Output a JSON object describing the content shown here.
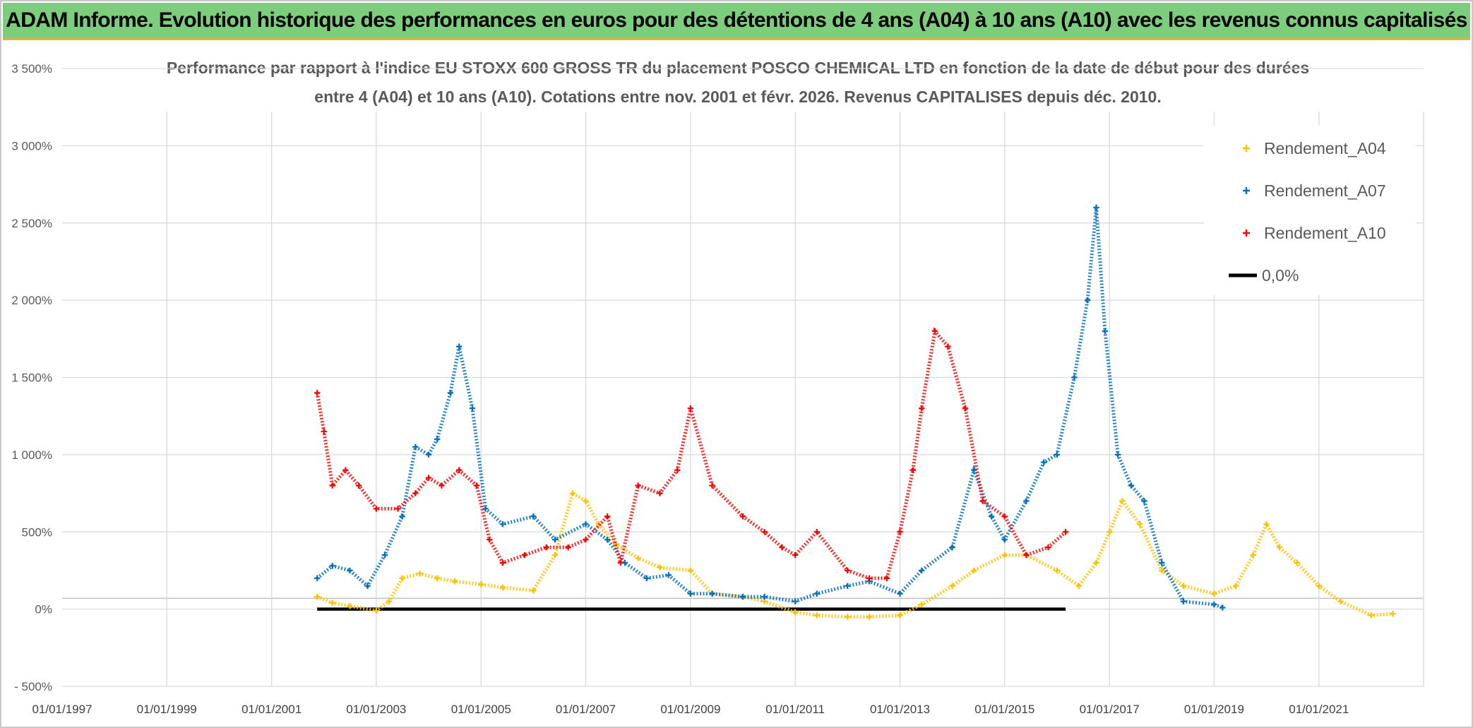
{
  "banner": {
    "title": "ADAM Informe. Evolution historique des performances en euros pour des détentions de 4 ans (A04) à 10 ans (A10) avec les revenus connus capitalisés"
  },
  "colors": {
    "banner_bg": "#7ccd7c",
    "a04": "#ffc000",
    "a07": "#0070c0",
    "a10": "#ff0000",
    "zero": "#000000",
    "grid": "#d9d9d9"
  },
  "chart_data": {
    "type": "scatter",
    "title_line1": "Performance par rapport à l'indice EU STOXX 600 GROSS TR  du placement POSCO CHEMICAL LTD en fonction de la date de début pour des durées",
    "title_line2": "entre 4 (A04) et 10 ans (A10). Cotations entre nov. 2001 et févr. 2026. Revenus CAPITALISES depuis déc. 2010.",
    "y_ticks": [
      "3 500%",
      "3 000%",
      "2 500%",
      "2 000%",
      "1 500%",
      "1 000%",
      "500%",
      "0%",
      "- 500%"
    ],
    "x_ticks": [
      "01/01/1997",
      "01/01/1999",
      "01/01/2001",
      "01/01/2003",
      "01/01/2005",
      "01/01/2007",
      "01/01/2009",
      "01/01/2011",
      "01/01/2013",
      "01/01/2015",
      "01/01/2017",
      "01/01/2019",
      "01/01/2021"
    ],
    "xlim": [
      "1997-01-01",
      "2023-01-01"
    ],
    "ylim": [
      -500,
      3500
    ],
    "grid": true,
    "legend_position": "top-right",
    "series": [
      {
        "name": "Rendement_A04",
        "marker": "+",
        "x": [
          "2001-11-15",
          "2002-03-01",
          "2002-07-01",
          "2003-01-01",
          "2003-04-01",
          "2003-07-01",
          "2003-11-01",
          "2004-03-01",
          "2004-07-01",
          "2005-01-01",
          "2005-06-01",
          "2006-01-01",
          "2006-06-01",
          "2006-10-01",
          "2007-01-01",
          "2007-04-01",
          "2007-08-01",
          "2008-01-01",
          "2008-06-01",
          "2009-01-01",
          "2009-06-01",
          "2010-01-01",
          "2010-06-01",
          "2011-01-01",
          "2011-06-01",
          "2012-01-01",
          "2012-06-01",
          "2013-01-01",
          "2013-06-01",
          "2014-01-01",
          "2014-06-01",
          "2015-01-01",
          "2015-06-01",
          "2016-01-01",
          "2016-06-01",
          "2016-10-01",
          "2017-01-01",
          "2017-04-01",
          "2017-08-01",
          "2018-01-01",
          "2018-06-01",
          "2019-01-01",
          "2019-06-01",
          "2019-10-01",
          "2020-01-01",
          "2020-04-01",
          "2020-08-01",
          "2021-01-01",
          "2021-06-01",
          "2022-01-01",
          "2022-06-01"
        ],
        "y": [
          80,
          40,
          20,
          -10,
          50,
          200,
          230,
          200,
          180,
          160,
          140,
          120,
          350,
          750,
          700,
          550,
          420,
          330,
          270,
          250,
          100,
          80,
          50,
          -20,
          -40,
          -50,
          -50,
          -40,
          30,
          150,
          250,
          350,
          350,
          250,
          150,
          300,
          500,
          700,
          550,
          250,
          150,
          100,
          150,
          350,
          550,
          400,
          300,
          150,
          50,
          -40,
          -30
        ]
      },
      {
        "name": "Rendement_A07",
        "marker": "+",
        "x": [
          "2001-11-15",
          "2002-03-01",
          "2002-07-01",
          "2002-11-01",
          "2003-03-01",
          "2003-07-01",
          "2003-10-01",
          "2004-01-01",
          "2004-03-01",
          "2004-06-01",
          "2004-08-01",
          "2004-11-01",
          "2005-02-01",
          "2005-06-01",
          "2006-01-01",
          "2006-06-01",
          "2007-01-01",
          "2007-06-01",
          "2007-10-01",
          "2008-03-01",
          "2008-08-01",
          "2009-01-01",
          "2009-06-01",
          "2010-01-01",
          "2010-06-01",
          "2011-01-01",
          "2011-06-01",
          "2012-01-01",
          "2012-06-01",
          "2013-01-01",
          "2013-06-01",
          "2014-01-01",
          "2014-06-01",
          "2014-10-01",
          "2015-01-01",
          "2015-06-01",
          "2015-10-01",
          "2016-01-01",
          "2016-05-01",
          "2016-08-01",
          "2016-10-01",
          "2016-12-01",
          "2017-03-01",
          "2017-06-01",
          "2017-09-01",
          "2018-01-01",
          "2018-06-01",
          "2019-01-01",
          "2019-03-01"
        ],
        "y": [
          200,
          280,
          250,
          150,
          350,
          600,
          1050,
          1000,
          1100,
          1400,
          1700,
          1300,
          650,
          550,
          600,
          450,
          550,
          450,
          300,
          200,
          220,
          100,
          100,
          80,
          80,
          50,
          100,
          150,
          180,
          100,
          250,
          400,
          900,
          600,
          450,
          700,
          950,
          1000,
          1500,
          2000,
          2600,
          1800,
          1000,
          800,
          700,
          300,
          50,
          30,
          10
        ]
      },
      {
        "name": "Rendement_A10",
        "marker": "+",
        "x": [
          "2001-11-15",
          "2002-01-01",
          "2002-03-01",
          "2002-06-01",
          "2002-09-01",
          "2003-01-01",
          "2003-06-01",
          "2003-10-01",
          "2004-01-01",
          "2004-04-01",
          "2004-08-01",
          "2004-12-01",
          "2005-03-01",
          "2005-06-01",
          "2005-11-01",
          "2006-04-01",
          "2006-09-01",
          "2007-01-01",
          "2007-06-01",
          "2007-09-01",
          "2008-01-01",
          "2008-06-01",
          "2008-10-01",
          "2009-01-01",
          "2009-06-01",
          "2010-01-01",
          "2010-06-01",
          "2010-10-01",
          "2011-01-01",
          "2011-06-01",
          "2012-01-01",
          "2012-06-01",
          "2012-10-01",
          "2013-01-01",
          "2013-04-01",
          "2013-06-01",
          "2013-09-01",
          "2013-12-01",
          "2014-04-01",
          "2014-08-01",
          "2015-01-01",
          "2015-06-01",
          "2015-11-01",
          "2016-03-01"
        ],
        "y": [
          1400,
          1150,
          800,
          900,
          800,
          650,
          650,
          750,
          850,
          800,
          900,
          800,
          450,
          300,
          350,
          400,
          400,
          450,
          600,
          300,
          800,
          750,
          900,
          1300,
          800,
          600,
          500,
          400,
          350,
          500,
          250,
          200,
          200,
          500,
          900,
          1300,
          1800,
          1700,
          1300,
          700,
          600,
          350,
          400,
          500
        ]
      },
      {
        "name": "0,0%",
        "marker": "line",
        "x": [
          "2001-11-15",
          "2016-03-01"
        ],
        "y": [
          0,
          0
        ]
      }
    ]
  }
}
